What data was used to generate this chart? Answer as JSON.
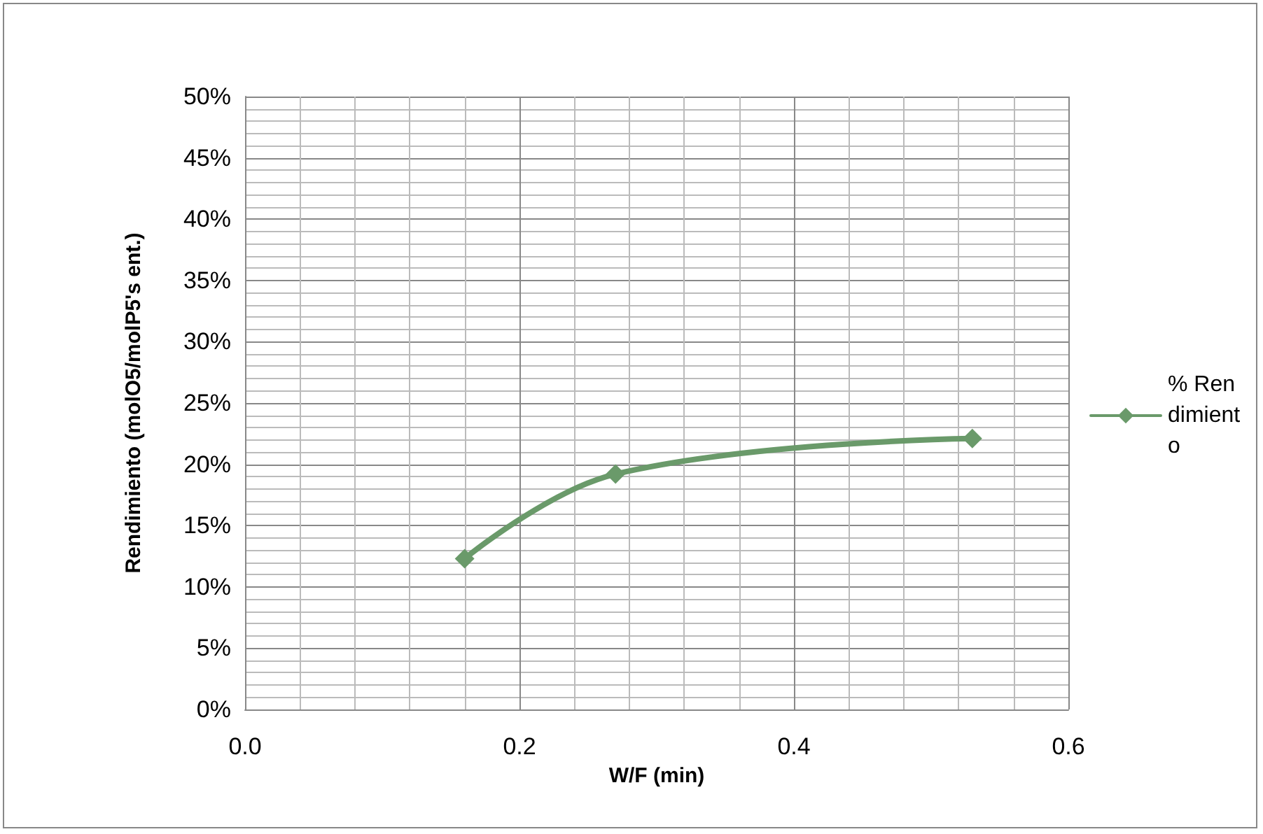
{
  "chart_data": {
    "type": "line",
    "xlabel": "W/F (min)",
    "ylabel": "Rendimiento (molO5/molP5's ent.)",
    "x": [
      0.16,
      0.27,
      0.53
    ],
    "series": [
      {
        "name": "% Rendimiento",
        "color": "#6a9a6a",
        "values": [
          12.3,
          19.2,
          22.1
        ]
      }
    ],
    "xlim": [
      0,
      0.6
    ],
    "xticks": [
      {
        "value": 0,
        "label": "0.0"
      },
      {
        "value": 0.2,
        "label": "0.2"
      },
      {
        "value": 0.4,
        "label": "0.4"
      },
      {
        "value": 0.6,
        "label": "0.6"
      }
    ],
    "ylim": [
      0,
      50
    ],
    "yticks": [
      {
        "value": 0,
        "label": "0%"
      },
      {
        "value": 5,
        "label": "5%"
      },
      {
        "value": 10,
        "label": "10%"
      },
      {
        "value": 15,
        "label": "15%"
      },
      {
        "value": 20,
        "label": "20%"
      },
      {
        "value": 25,
        "label": "25%"
      },
      {
        "value": 30,
        "label": "30%"
      },
      {
        "value": 35,
        "label": "35%"
      },
      {
        "value": 40,
        "label": "40%"
      },
      {
        "value": 45,
        "label": "45%"
      },
      {
        "value": 50,
        "label": "50%"
      }
    ],
    "grid": true,
    "legend": "right",
    "marker": "diamond",
    "line_style": "solid"
  }
}
